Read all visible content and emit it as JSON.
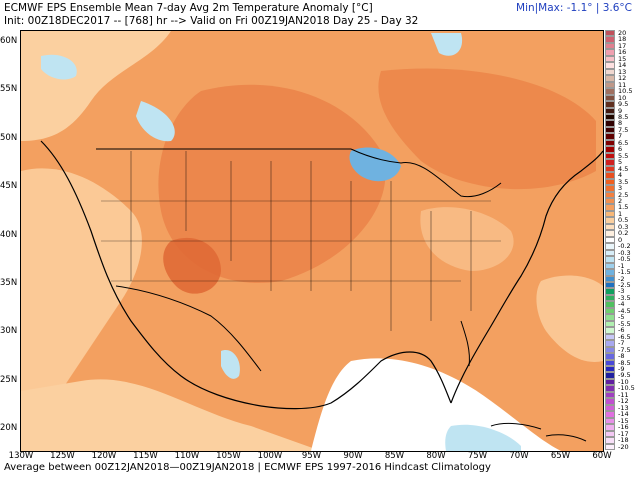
{
  "header": {
    "title": "ECMWF EPS Ensemble Mean 7-day Avg 2m Temperature Anomaly [°C]",
    "init": "Init: 00Z18DEC2017 -- [768] hr --> Valid on Fri 00Z19JAN2018  Day 25 - Day 32",
    "minmax": "Min|Max: -1.1° | 3.6°C"
  },
  "map": {
    "lat_labels": [
      "60N",
      "55N",
      "50N",
      "45N",
      "40N",
      "35N",
      "30N",
      "25N",
      "20N"
    ],
    "lon_labels": [
      "130W",
      "125W",
      "120W",
      "115W",
      "110W",
      "105W",
      "100W",
      "95W",
      "90W",
      "85W",
      "80W",
      "75W",
      "70W",
      "65W",
      "60W"
    ],
    "colors": {
      "anomaly_base": "#f3a060",
      "anomaly_warm": "#ea7f45",
      "anomaly_weak": "#fbd0a0",
      "anomaly_neutral": "#ffffff",
      "anomaly_cool": "#bfe4f2",
      "anomaly_cold": "#6fb2e0",
      "coastline": "#000000"
    }
  },
  "legend": {
    "labels": [
      "20",
      "18",
      "17",
      "16",
      "15",
      "14",
      "13",
      "12",
      "11",
      "10.5",
      "10",
      "9.5",
      "9",
      "8.5",
      "8",
      "7.5",
      "7",
      "6.5",
      "6",
      "5.5",
      "5",
      "4.5",
      "4",
      "3.5",
      "3",
      "2.5",
      "2",
      "1.5",
      "1",
      "0.5",
      "0.3",
      "0.2",
      "0",
      "-0.2",
      "-0.3",
      "-0.5",
      "-1",
      "-1.5",
      "-2",
      "-2.5",
      "-3",
      "-3.5",
      "-4",
      "-4.5",
      "-5",
      "-5.5",
      "-6",
      "-6.5",
      "-7",
      "-7.5",
      "-8",
      "-8.5",
      "-9",
      "-9.5",
      "-10",
      "-10.5",
      "-11",
      "-12",
      "-13",
      "-14",
      "-15",
      "-16",
      "-17",
      "-18",
      "-20"
    ],
    "colors": [
      "#c0505a",
      "#d06070",
      "#e08090",
      "#f0a0b0",
      "#f8c0c8",
      "#fde0e0",
      "#f0d8d0",
      "#d8b8a8",
      "#c09888",
      "#a07060",
      "#805040",
      "#603020",
      "#401810",
      "#200800",
      "#300000",
      "#400000",
      "#600000",
      "#800000",
      "#a00000",
      "#c01010",
      "#d02020",
      "#e03820",
      "#e85020",
      "#f06020",
      "#f07030",
      "#f38040",
      "#f39050",
      "#f5a060",
      "#f8b878",
      "#fbd0a0",
      "#fde0c0",
      "#fef0e0",
      "#ffffff",
      "#eaf6fb",
      "#d8eef8",
      "#bfe4f2",
      "#9fd0ec",
      "#6fb2e0",
      "#4090d0",
      "#1f70c0",
      "#10a060",
      "#30b060",
      "#50c060",
      "#70d070",
      "#90e090",
      "#b0f0b0",
      "#d0f8d0",
      "#c8c8f8",
      "#a8a8f0",
      "#8888e8",
      "#6868e0",
      "#4848d8",
      "#2828c0",
      "#2020a0",
      "#6020a0",
      "#8030b0",
      "#a040c0",
      "#c050d0",
      "#d060d8",
      "#e070e0",
      "#e890e8",
      "#f0b0f0",
      "#f4c8f4",
      "#f8e0f8",
      "#fcf0fc"
    ]
  },
  "footer": {
    "text": "Average between  00Z12JAN2018—00Z19JAN2018 | ECMWF EPS 1997-2016 Hindcast Climatology"
  }
}
